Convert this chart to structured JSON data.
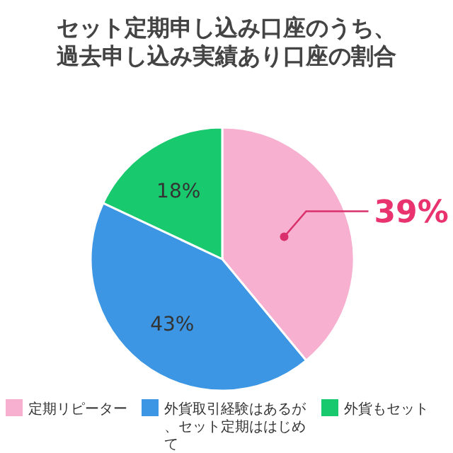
{
  "chart_data": {
    "type": "pie",
    "title": "セット定期申し込み口座のうち、過去申し込み実績あり口座の割合",
    "categories": [
      "定期リピーター",
      "外貨取引経験はあるが、セット定期ははじめて",
      "外貨もセット"
    ],
    "values": [
      39,
      43,
      18
    ],
    "colors": [
      "#f7b0cf",
      "#3d96e3",
      "#19c96e"
    ],
    "value_labels": [
      "39%",
      "43%",
      "18%"
    ],
    "legend": "bottom"
  }
}
